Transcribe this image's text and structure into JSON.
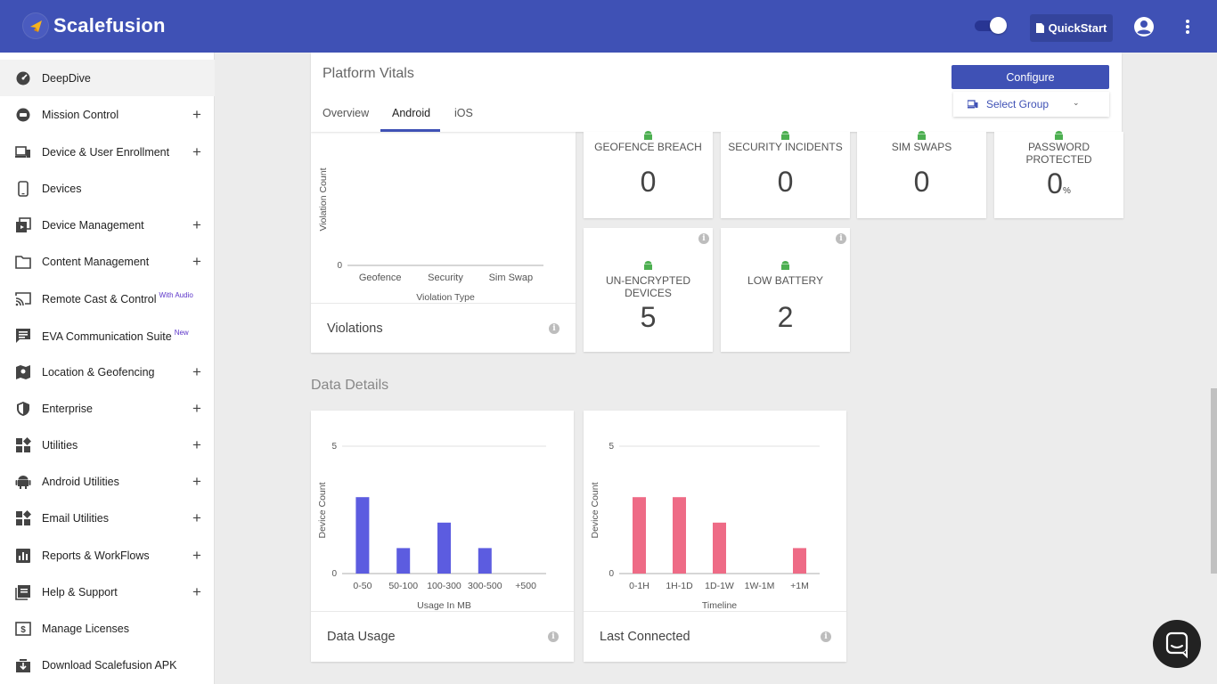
{
  "app": {
    "name": "Scalefusion",
    "quickstart_label": "QuickStart"
  },
  "sidebar": {
    "items": [
      {
        "label": "DeepDive",
        "icon": "speedometer-icon",
        "expandable": false,
        "active": true
      },
      {
        "label": "Mission Control",
        "icon": "mission-control-icon",
        "expandable": true
      },
      {
        "label": "Device & User Enrollment",
        "icon": "devices-icon",
        "expandable": true
      },
      {
        "label": "Devices",
        "icon": "phone-icon",
        "expandable": false
      },
      {
        "label": "Device Management",
        "icon": "device-management-icon",
        "expandable": true
      },
      {
        "label": "Content Management",
        "icon": "folder-icon",
        "expandable": true
      },
      {
        "label": "Remote Cast & Control",
        "badge": "With Audio",
        "icon": "cast-icon",
        "expandable": false
      },
      {
        "label": "EVA Communication Suite",
        "badge": "New",
        "icon": "chat-icon",
        "expandable": false
      },
      {
        "label": "Location & Geofencing",
        "icon": "map-icon",
        "expandable": true
      },
      {
        "label": "Enterprise",
        "icon": "shield-icon",
        "expandable": true
      },
      {
        "label": "Utilities",
        "icon": "widgets-icon",
        "expandable": true
      },
      {
        "label": "Android Utilities",
        "icon": "android-icon",
        "expandable": true
      },
      {
        "label": "Email Utilities",
        "icon": "widgets-icon",
        "expandable": true
      },
      {
        "label": "Reports & WorkFlows",
        "icon": "report-icon",
        "expandable": true
      },
      {
        "label": "Help & Support",
        "icon": "help-icon",
        "expandable": true
      },
      {
        "label": "Manage Licenses",
        "icon": "license-icon",
        "expandable": false
      },
      {
        "label": "Download Scalefusion APK",
        "icon": "download-icon",
        "expandable": false
      }
    ]
  },
  "platform_vitals": {
    "title": "Platform Vitals",
    "tabs": [
      "Overview",
      "Android",
      "iOS"
    ],
    "active_tab": "Android",
    "configure_label": "Configure",
    "select_group_label": "Select Group"
  },
  "stats": [
    {
      "label": "GEOFENCE BREACH",
      "value": "0"
    },
    {
      "label": "SECURITY INCIDENTS",
      "value": "0"
    },
    {
      "label": "SIM SWAPS",
      "value": "0"
    },
    {
      "label": "PASSWORD PROTECTED",
      "value": "0",
      "unit": "%"
    },
    {
      "label": "UN-ENCRYPTED DEVICES",
      "value": "5"
    },
    {
      "label": "LOW BATTERY",
      "value": "2"
    }
  ],
  "violations": {
    "footer": "Violations"
  },
  "data_details": {
    "title": "Data Details",
    "data_usage_footer": "Data Usage",
    "last_connected_footer": "Last Connected"
  },
  "chart_data": [
    {
      "type": "bar",
      "categories": [
        "Geofence",
        "Security",
        "Sim Swap"
      ],
      "values": [
        0,
        0,
        0
      ],
      "xlabel": "Violation Type",
      "ylabel": "Violation Count",
      "yticks": [
        0
      ],
      "grid": false,
      "color": "#5c5ce0"
    },
    {
      "type": "bar",
      "categories": [
        "0-50",
        "50-100",
        "100-300",
        "300-500",
        "+500"
      ],
      "values": [
        3,
        1,
        2,
        1,
        0
      ],
      "xlabel": "Usage In MB",
      "ylabel": "Device Count",
      "ylim": [
        0,
        5
      ],
      "yticks": [
        0,
        5
      ],
      "color": "#5c5ce0"
    },
    {
      "type": "bar",
      "categories": [
        "0-1H",
        "1H-1D",
        "1D-1W",
        "1W-1M",
        "+1M"
      ],
      "values": [
        3,
        3,
        2,
        0,
        1
      ],
      "xlabel": "Timeline",
      "ylabel": "Device Count",
      "ylim": [
        0,
        5
      ],
      "yticks": [
        0,
        5
      ],
      "color": "#ee6b86"
    }
  ]
}
